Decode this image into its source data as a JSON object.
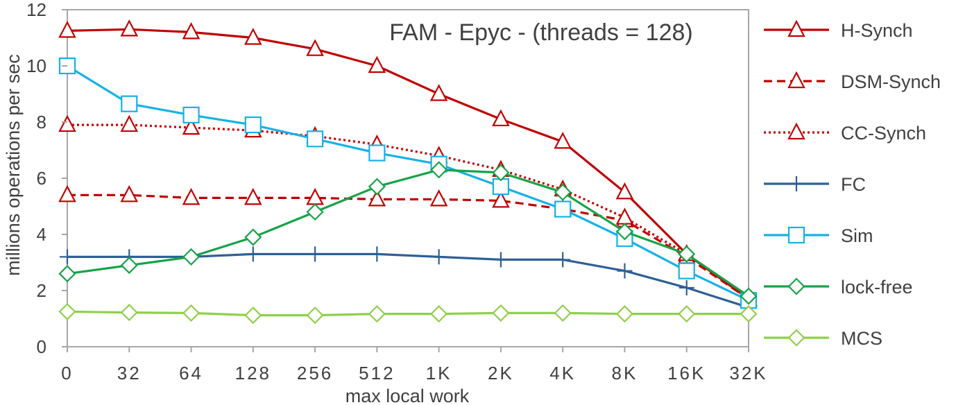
{
  "chart_data": {
    "type": "line",
    "title": "FAM - Epyc - (threads = 128)",
    "xlabel": "max local work",
    "ylabel": "millions operations per sec",
    "ylim": [
      0,
      12
    ],
    "yticks": [
      "0",
      "2",
      "4",
      "6",
      "8",
      "10",
      "12"
    ],
    "categories": [
      "0",
      "32",
      "64",
      "128",
      "256",
      "512",
      "1K",
      "2K",
      "4K",
      "8K",
      "16K",
      "32K"
    ],
    "grid": false,
    "legend_position": "right",
    "series": [
      {
        "name": "H-Synch",
        "color": "#c00000",
        "dash": "solid",
        "marker": "triangle",
        "values": [
          11.25,
          11.3,
          11.2,
          11.0,
          10.6,
          10.0,
          9.0,
          8.1,
          7.3,
          5.5,
          3.3,
          1.7
        ]
      },
      {
        "name": "DSM-Synch",
        "color": "#c00000",
        "dash": "dashed",
        "marker": "triangle",
        "values": [
          5.4,
          5.4,
          5.3,
          5.3,
          5.3,
          5.25,
          5.25,
          5.2,
          4.9,
          4.5,
          3.2,
          1.7
        ]
      },
      {
        "name": "CC-Synch",
        "color": "#c00000",
        "dash": "dotted",
        "marker": "triangle",
        "values": [
          7.9,
          7.9,
          7.8,
          7.7,
          7.5,
          7.2,
          6.8,
          6.3,
          5.6,
          4.6,
          3.3,
          1.7
        ]
      },
      {
        "name": "FC",
        "color": "#2e6096",
        "dash": "solid",
        "marker": "plus",
        "values": [
          3.2,
          3.2,
          3.2,
          3.3,
          3.3,
          3.3,
          3.2,
          3.1,
          3.1,
          2.7,
          2.1,
          1.4
        ]
      },
      {
        "name": "Sim",
        "color": "#17b1e6",
        "dash": "solid",
        "marker": "square",
        "values": [
          10.0,
          8.65,
          8.25,
          7.9,
          7.4,
          6.9,
          6.5,
          5.7,
          4.9,
          3.85,
          2.7,
          1.65
        ]
      },
      {
        "name": "lock-free",
        "color": "#16a347",
        "dash": "solid",
        "marker": "diamond",
        "values": [
          2.6,
          2.9,
          3.2,
          3.9,
          4.8,
          5.7,
          6.3,
          6.2,
          5.5,
          4.1,
          3.3,
          1.8
        ]
      },
      {
        "name": "MCS",
        "color": "#8fcf4b",
        "dash": "solid",
        "marker": "diamond",
        "values": [
          1.25,
          1.22,
          1.2,
          1.12,
          1.12,
          1.17,
          1.17,
          1.2,
          1.2,
          1.17,
          1.17,
          1.17
        ]
      }
    ]
  }
}
